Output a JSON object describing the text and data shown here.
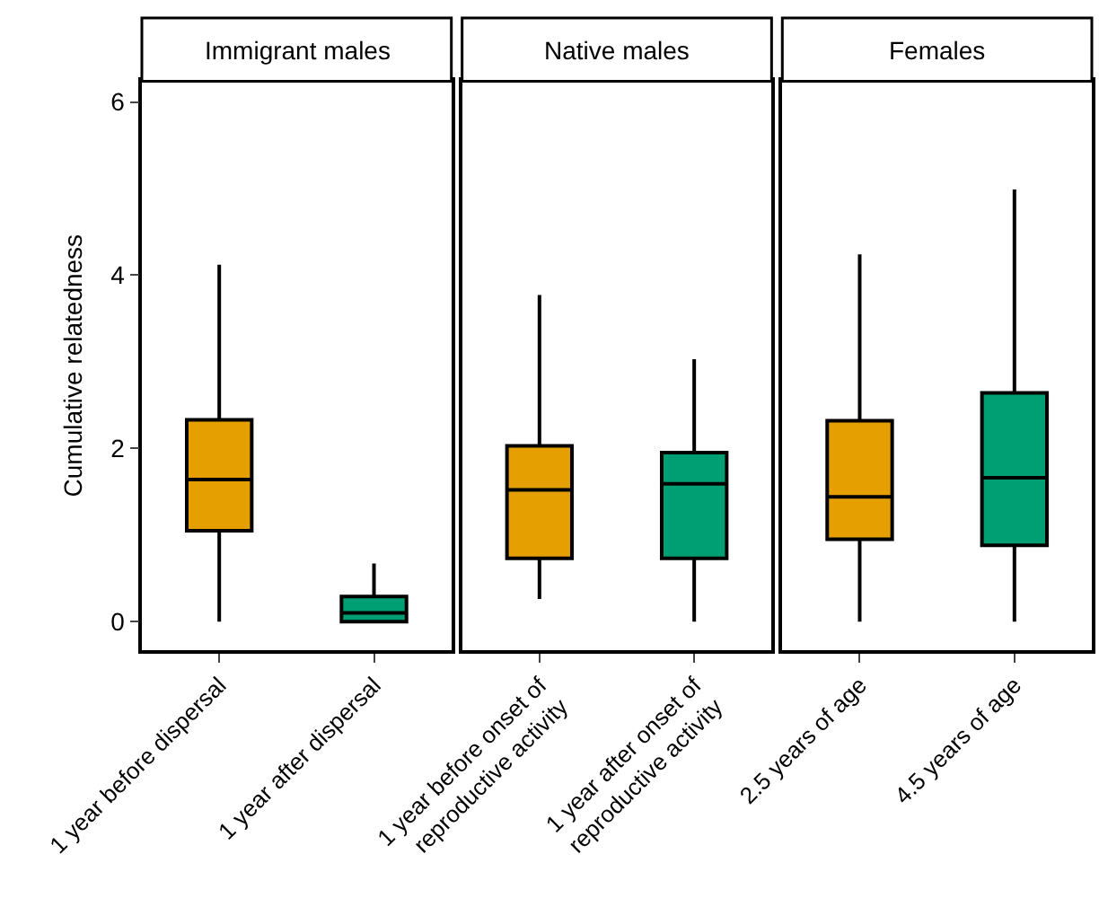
{
  "chart_data": [
    {
      "type": "box",
      "title": "Immigrant males",
      "ylabel": "Cumulative relatedness",
      "categories": [
        "1 year before dispersal",
        "1 year after dispersal"
      ],
      "colors": [
        "#e69f00",
        "#009e73"
      ],
      "ylim": [
        -0.33,
        6.24
      ],
      "yticks": [
        0,
        2,
        4,
        6
      ],
      "boxes": [
        {
          "low": 0,
          "q1": 1.05,
          "median": 1.64,
          "q3": 2.33,
          "high": 4.12
        },
        {
          "low": 0,
          "q1": 0,
          "median": 0.1,
          "q3": 0.29,
          "high": 0.67
        }
      ]
    },
    {
      "type": "box",
      "title": "Native males",
      "categories": [
        "1 year before onset of\nreproductive activity",
        "1 year after onset of\nreproductive activity"
      ],
      "colors": [
        "#e69f00",
        "#009e73"
      ],
      "ylim": [
        -0.33,
        6.24
      ],
      "tick_labels": "x",
      "boxes": [
        {
          "low": 0.26,
          "q1": 0.73,
          "median": 1.52,
          "q3": 2.03,
          "high": 3.77
        },
        {
          "low": 0,
          "q1": 0.73,
          "median": 1.59,
          "q3": 1.95,
          "high": 3.03
        }
      ]
    },
    {
      "type": "box",
      "title": "Females",
      "categories": [
        "2.5 years of age",
        "4.5 years of age"
      ],
      "colors": [
        "#e69f00",
        "#009e73"
      ],
      "ylim": [
        -0.33,
        6.24
      ],
      "tick_labels": "x",
      "boxes": [
        {
          "low": 0,
          "q1": 0.95,
          "median": 1.44,
          "q3": 2.32,
          "high": 4.24
        },
        {
          "low": 0,
          "q1": 0.88,
          "median": 1.66,
          "q3": 2.64,
          "high": 4.99
        }
      ]
    }
  ]
}
